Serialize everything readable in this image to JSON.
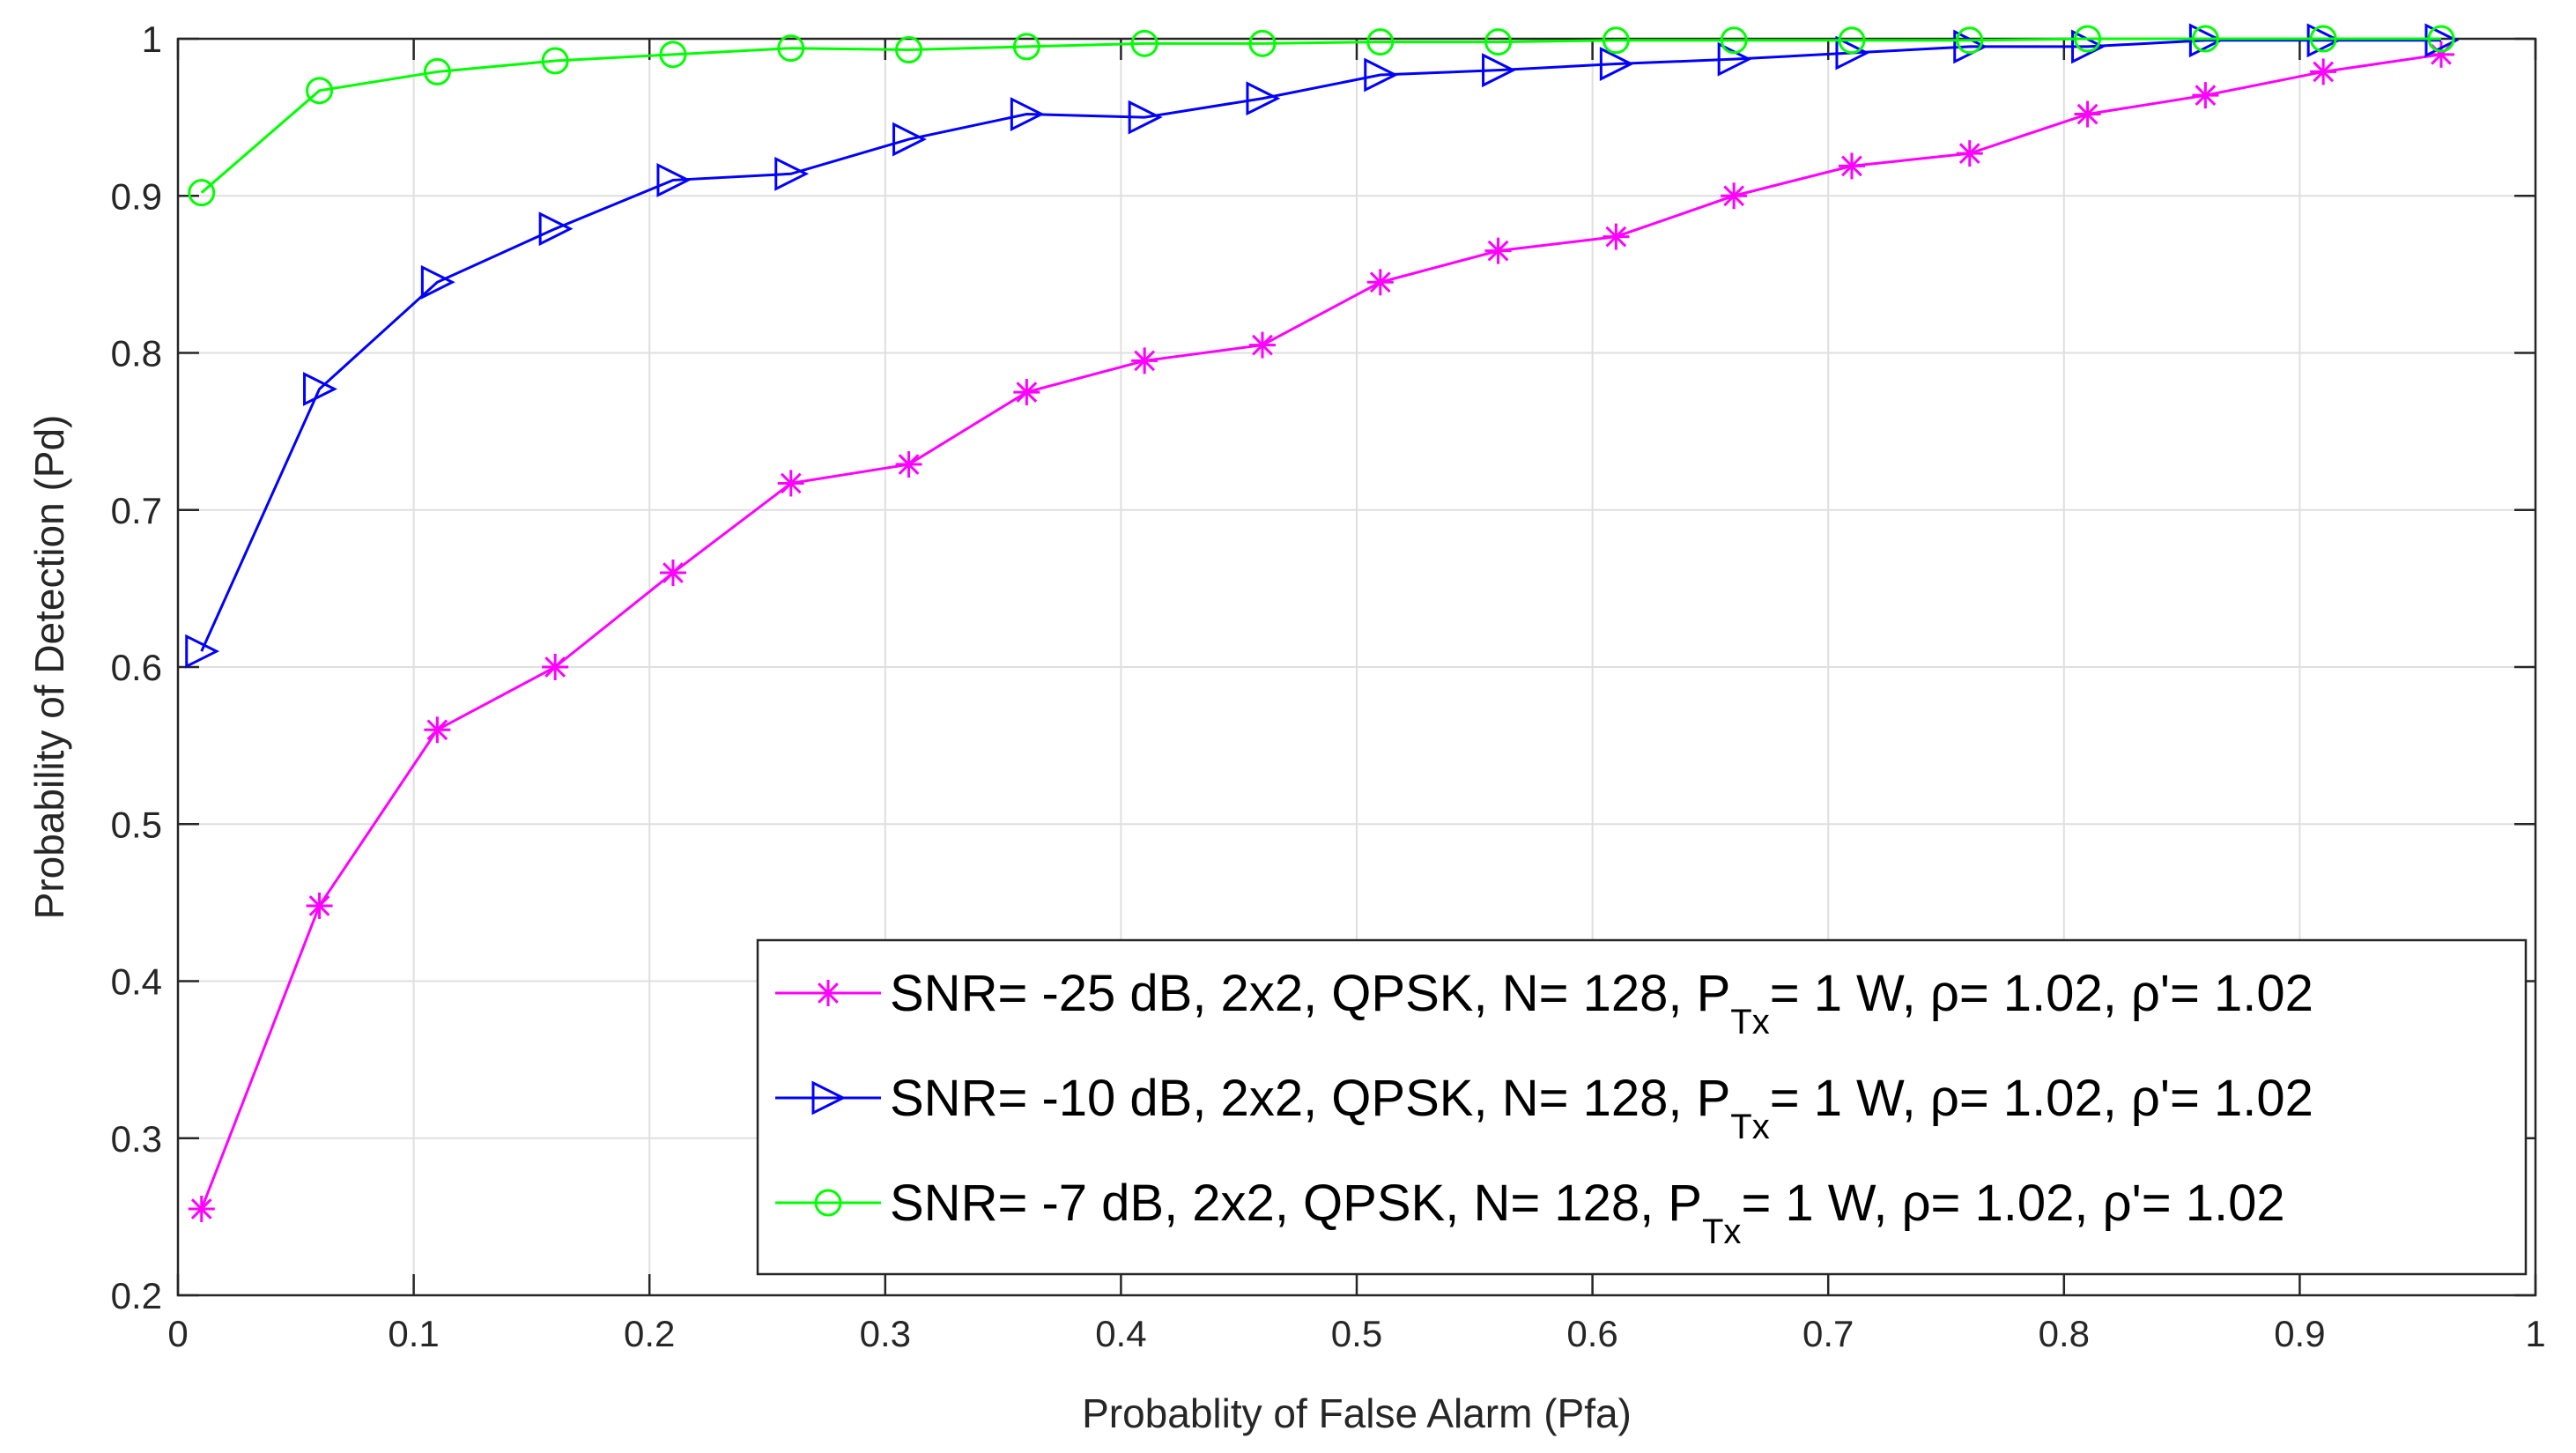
{
  "chart_data": {
    "type": "line",
    "title": "",
    "xlabel": "Probablity of False Alarm (Pfa)",
    "ylabel": "Probability of Detection (Pd)",
    "xlim": [
      0,
      1
    ],
    "ylim": [
      0.2,
      1
    ],
    "grid": true,
    "legend_position": "bottom-right",
    "x_ticks": [
      0,
      0.1,
      0.2,
      0.3,
      0.4,
      0.5,
      0.6,
      0.7,
      0.8,
      0.9,
      1
    ],
    "x_tick_labels": [
      "0",
      "0.1",
      "0.2",
      "0.3",
      "0.4",
      "0.5",
      "0.6",
      "0.7",
      "0.8",
      "0.9",
      "1"
    ],
    "y_ticks": [
      0.2,
      0.3,
      0.4,
      0.5,
      0.6,
      0.7,
      0.8,
      0.9,
      1
    ],
    "y_tick_labels": [
      "0.2",
      "0.3",
      "0.4",
      "0.5",
      "0.6",
      "0.7",
      "0.8",
      "0.9",
      "1"
    ],
    "x": [
      0.01,
      0.06,
      0.11,
      0.16,
      0.21,
      0.26,
      0.31,
      0.36,
      0.41,
      0.46,
      0.51,
      0.56,
      0.61,
      0.66,
      0.71,
      0.76,
      0.81,
      0.86,
      0.91,
      0.96
    ],
    "series": [
      {
        "name": "SNR= -25 dB, 2x2, QPSK, N= 128, P_Tx= 1 W, ρ= 1.02, ρ'= 1.02",
        "legend_main": "SNR= -25 dB, 2x2, QPSK, N= 128, P",
        "legend_sub": "Tx",
        "legend_tail": "= 1 W, ρ= 1.02, ρ'= 1.02",
        "color": "#ff00ff",
        "marker": "asterisk",
        "values": [
          0.255,
          0.448,
          0.56,
          0.6,
          0.66,
          0.717,
          0.729,
          0.775,
          0.795,
          0.805,
          0.845,
          0.865,
          0.874,
          0.9,
          0.919,
          0.927,
          0.952,
          0.964,
          0.979,
          0.99
        ]
      },
      {
        "name": "SNR= -10 dB, 2x2, QPSK, N= 128, P_Tx= 1 W, ρ= 1.02, ρ'= 1.02",
        "legend_main": "SNR= -10 dB, 2x2, QPSK, N= 128, P",
        "legend_sub": "Tx",
        "legend_tail": "= 1 W, ρ= 1.02, ρ'= 1.02",
        "color": "#0000ff",
        "marker": "triangle-right",
        "values": [
          0.61,
          0.777,
          0.845,
          0.879,
          0.91,
          0.914,
          0.936,
          0.952,
          0.95,
          0.962,
          0.977,
          0.98,
          0.984,
          0.987,
          0.991,
          0.995,
          0.995,
          0.999,
          0.999,
          0.999
        ]
      },
      {
        "name": "SNR= -7 dB, 2x2, QPSK, N= 128, P_Tx= 1 W, ρ= 1.02, ρ'= 1.02",
        "legend_main": "SNR= -7 dB, 2x2, QPSK, N= 128, P",
        "legend_sub": "Tx",
        "legend_tail": "= 1 W, ρ= 1.02, ρ'= 1.02",
        "color": "#00ff00",
        "marker": "circle",
        "values": [
          0.902,
          0.967,
          0.979,
          0.986,
          0.99,
          0.994,
          0.993,
          0.995,
          0.997,
          0.997,
          0.998,
          0.998,
          0.999,
          0.999,
          0.999,
          0.999,
          1.0,
          1.0,
          1.0,
          1.0
        ]
      }
    ]
  }
}
